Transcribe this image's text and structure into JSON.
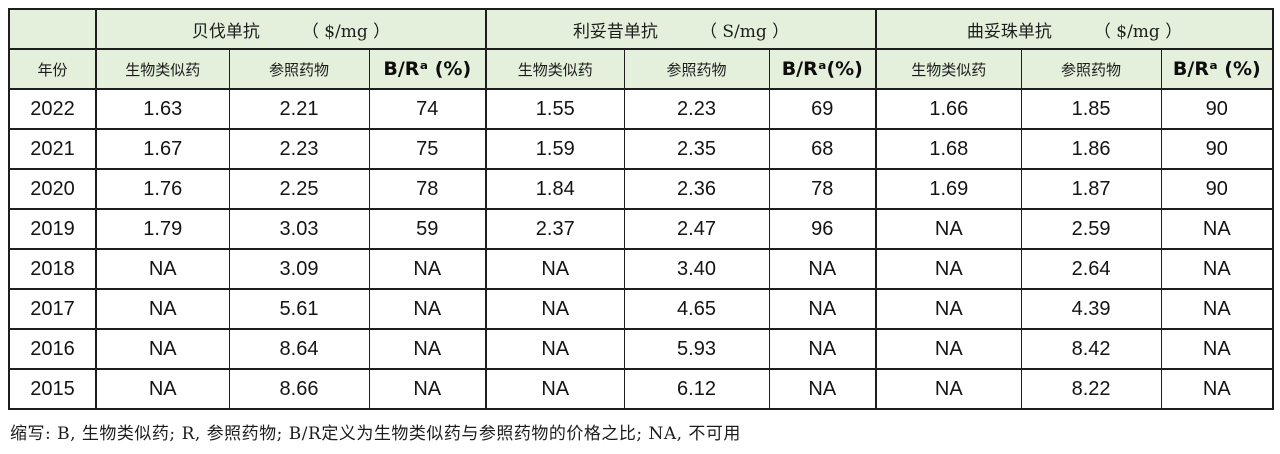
{
  "table": {
    "year_header": "年份",
    "groups": [
      {
        "name": "贝伐单抗",
        "unit": "（ $/mg ）",
        "sub": [
          "生物类似药",
          "参照药物"
        ],
        "ratio_label": "B/Rᵃ (%)"
      },
      {
        "name": "利妥昔单抗",
        "unit": "（ S/mg ）",
        "sub": [
          "生物类似药",
          "参照药物"
        ],
        "ratio_label": "B/Rᵃ(%)"
      },
      {
        "name": "曲妥珠单抗",
        "unit": "（ $/mg ）",
        "sub": [
          "生物类似药",
          "参照药物"
        ],
        "ratio_label": "B/Rᵃ (%)"
      }
    ],
    "rows": [
      {
        "year": "2022",
        "values": [
          "1.63",
          "2.21",
          "74",
          "1.55",
          "2.23",
          "69",
          "1.66",
          "1.85",
          "90"
        ]
      },
      {
        "year": "2021",
        "values": [
          "1.67",
          "2.23",
          "75",
          "1.59",
          "2.35",
          "68",
          "1.68",
          "1.86",
          "90"
        ]
      },
      {
        "year": "2020",
        "values": [
          "1.76",
          "2.25",
          "78",
          "1.84",
          "2.36",
          "78",
          "1.69",
          "1.87",
          "90"
        ]
      },
      {
        "year": "2019",
        "values": [
          "1.79",
          "3.03",
          "59",
          "2.37",
          "2.47",
          "96",
          "NA",
          "2.59",
          "NA"
        ]
      },
      {
        "year": "2018",
        "values": [
          "NA",
          "3.09",
          "NA",
          "NA",
          "3.40",
          "NA",
          "NA",
          "2.64",
          "NA"
        ]
      },
      {
        "year": "2017",
        "values": [
          "NA",
          "5.61",
          "NA",
          "NA",
          "4.65",
          "NA",
          "NA",
          "4.39",
          "NA"
        ]
      },
      {
        "year": "2016",
        "values": [
          "NA",
          "8.64",
          "NA",
          "NA",
          "5.93",
          "NA",
          "NA",
          "8.42",
          "NA"
        ]
      },
      {
        "year": "2015",
        "values": [
          "NA",
          "8.66",
          "NA",
          "NA",
          "6.12",
          "NA",
          "NA",
          "8.22",
          "NA"
        ]
      }
    ],
    "footnote": "缩写: B, 生物类似药; R, 参照药物; B/R定义为生物类似药与参照药物的价格之比; NA, 不可用"
  },
  "colors": {
    "header_background": "#e4efdc",
    "border": "#1e1e1e",
    "text": "#141414"
  }
}
